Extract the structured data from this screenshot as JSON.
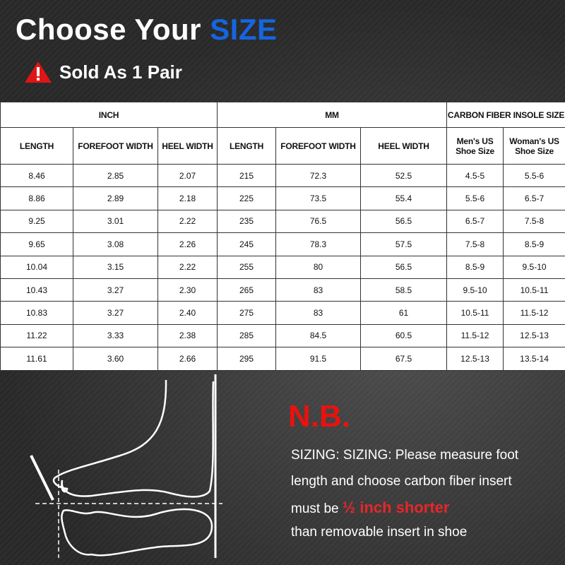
{
  "header": {
    "title_prefix": "Choose Your ",
    "title_accent": "SIZE",
    "subtitle": "Sold As 1 Pair",
    "warning_icon": "warning-triangle-icon",
    "accent_color": "#1565e0"
  },
  "table": {
    "groups": [
      "INCH",
      "MM",
      "CARBON FIBER INSOLE SIZE"
    ],
    "columns": [
      "LENGTH",
      "FOREFOOT WIDTH",
      "HEEL WIDTH",
      "LENGTH",
      "FOREFOOT WIDTH",
      "HEEL WIDTH",
      "Men's US Shoe Size",
      "Woman's US Shoe Size"
    ],
    "rows": [
      [
        "8.46",
        "2.85",
        "2.07",
        "215",
        "72.3",
        "52.5",
        "4.5-5",
        "5.5-6"
      ],
      [
        "8.86",
        "2.89",
        "2.18",
        "225",
        "73.5",
        "55.4",
        "5.5-6",
        "6.5-7"
      ],
      [
        "9.25",
        "3.01",
        "2.22",
        "235",
        "76.5",
        "56.5",
        "6.5-7",
        "7.5-8"
      ],
      [
        "9.65",
        "3.08",
        "2.26",
        "245",
        "78.3",
        "57.5",
        "7.5-8",
        "8.5-9"
      ],
      [
        "10.04",
        "3.15",
        "2.22",
        "255",
        "80",
        "56.5",
        "8.5-9",
        "9.5-10"
      ],
      [
        "10.43",
        "3.27",
        "2.30",
        "265",
        "83",
        "58.5",
        "9.5-10",
        "10.5-11"
      ],
      [
        "10.83",
        "3.27",
        "2.40",
        "275",
        "83",
        "61",
        "10.5-11",
        "11.5-12"
      ],
      [
        "11.22",
        "3.33",
        "2.38",
        "285",
        "84.5",
        "60.5",
        "11.5-12",
        "12.5-13"
      ],
      [
        "11.61",
        "3.60",
        "2.66",
        "295",
        "91.5",
        "67.5",
        "12.5-13",
        "13.5-14"
      ]
    ]
  },
  "note": {
    "heading": "N.B.",
    "line1": "SIZING: SIZING: Please measure foot",
    "line2": "length and choose carbon fiber insert",
    "line3_prefix": "must be ",
    "line3_emphasis": "½ inch shorter",
    "line4": "than removable insert in shoe",
    "emphasis_color": "#e8262a"
  }
}
